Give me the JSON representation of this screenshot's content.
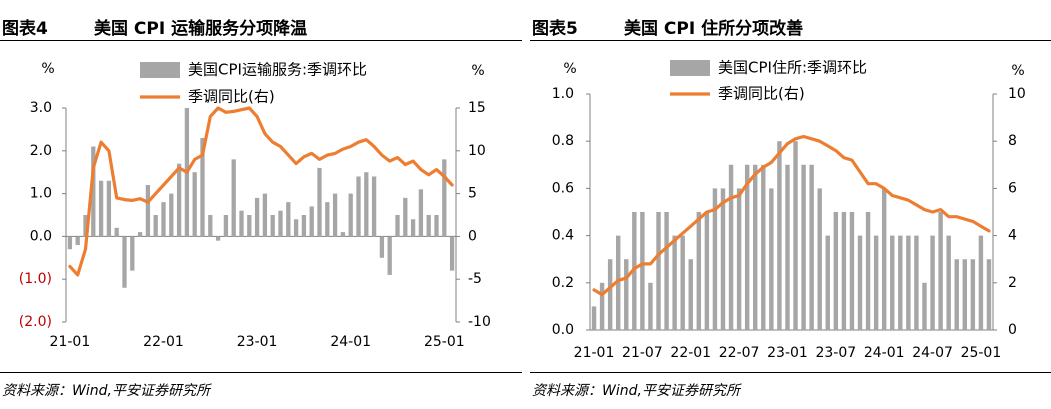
{
  "colors": {
    "bar": "#A6A6A6",
    "line": "#ED7D31",
    "negative_tick": "#C00000",
    "axis": "#808080"
  },
  "panels": [
    {
      "title_num": "图表4",
      "title_text": "美国 CPI 运输服务分项降温",
      "source": "资料来源：Wind,平安证券研究所"
    },
    {
      "title_num": "图表5",
      "title_text": "美国 CPI 住所分项改善",
      "source": "资料来源：Wind,平安证券研究所"
    }
  ],
  "chart_data": [
    {
      "type": "bar",
      "title": "美国 CPI 运输服务分项降温",
      "left_unit": "%",
      "right_unit": "%",
      "left_axis": {
        "min": -2.0,
        "max": 3.0,
        "ticks": [
          3.0,
          2.0,
          1.0,
          0.0,
          -1.0,
          -2.0
        ],
        "tick_labels": [
          "3.0",
          "2.0",
          "1.0",
          "0.0",
          "(1.0)",
          "(2.0)"
        ]
      },
      "right_axis": {
        "min": -10,
        "max": 15,
        "ticks": [
          15,
          10,
          5,
          0,
          -5,
          -10
        ],
        "tick_labels": [
          "15",
          "10",
          "5",
          "0",
          "-5",
          "-10"
        ]
      },
      "x_tick_labels": [
        "21-01",
        "22-01",
        "23-01",
        "24-01",
        "25-01"
      ],
      "x_tick_indices": [
        0,
        12,
        24,
        36,
        48
      ],
      "series": [
        {
          "name": "美国CPI运输服务:季调环比",
          "type": "bar",
          "axis": "left",
          "x": [
            "21-01",
            "21-02",
            "21-03",
            "21-04",
            "21-05",
            "21-06",
            "21-07",
            "21-08",
            "21-09",
            "21-10",
            "21-11",
            "21-12",
            "22-01",
            "22-02",
            "22-03",
            "22-04",
            "22-05",
            "22-06",
            "22-07",
            "22-08",
            "22-09",
            "22-10",
            "22-11",
            "22-12",
            "23-01",
            "23-02",
            "23-03",
            "23-04",
            "23-05",
            "23-06",
            "23-07",
            "23-08",
            "23-09",
            "23-10",
            "23-11",
            "23-12",
            "24-01",
            "24-02",
            "24-03",
            "24-04",
            "24-05",
            "24-06",
            "24-07",
            "24-08",
            "24-09",
            "24-10",
            "24-11",
            "24-12",
            "25-01",
            "25-02"
          ],
          "values": [
            -0.3,
            -0.2,
            0.5,
            2.1,
            1.3,
            1.3,
            0.2,
            -1.2,
            -0.8,
            0.1,
            1.2,
            0.5,
            0.8,
            1.0,
            1.7,
            3.0,
            1.5,
            2.3,
            0.5,
            -0.1,
            0.5,
            1.8,
            0.6,
            0.5,
            0.9,
            1.0,
            0.5,
            0.6,
            0.8,
            0.4,
            0.5,
            0.7,
            1.6,
            0.8,
            1.0,
            0.1,
            1.0,
            1.4,
            1.5,
            1.4,
            -0.5,
            -0.9,
            0.5,
            0.9,
            0.4,
            1.1,
            0.5,
            0.5,
            1.8,
            -0.8
          ]
        },
        {
          "name": "季调同比(右)",
          "type": "line",
          "axis": "right",
          "values": [
            -3.5,
            -4.5,
            -1.5,
            8.0,
            11.0,
            10.0,
            4.5,
            4.3,
            4.2,
            4.4,
            4.0,
            5.0,
            6.0,
            7.0,
            8.0,
            7.5,
            9.0,
            9.5,
            14.0,
            15.0,
            14.5,
            14.6,
            14.8,
            15.0,
            14.0,
            12.0,
            11.0,
            10.5,
            9.5,
            8.5,
            9.3,
            9.7,
            9.0,
            9.5,
            9.7,
            10.2,
            10.5,
            11.0,
            11.3,
            10.5,
            9.5,
            8.8,
            9.2,
            8.4,
            8.8,
            7.8,
            7.2,
            7.8,
            7.0,
            6.0
          ]
        }
      ]
    },
    {
      "type": "bar",
      "title": "美国 CPI 住所分项改善",
      "left_unit": "%",
      "right_unit": "%",
      "left_axis": {
        "min": 0.0,
        "max": 1.0,
        "ticks": [
          1.0,
          0.8,
          0.6,
          0.4,
          0.2,
          0.0
        ],
        "tick_labels": [
          "1.0",
          "0.8",
          "0.6",
          "0.4",
          "0.2",
          "0.0"
        ]
      },
      "right_axis": {
        "min": 0,
        "max": 10,
        "ticks": [
          10,
          8,
          6,
          4,
          2,
          0
        ],
        "tick_labels": [
          "10",
          "8",
          "6",
          "4",
          "2",
          "0"
        ]
      },
      "x_tick_labels": [
        "21-01",
        "21-07",
        "22-01",
        "22-07",
        "23-01",
        "23-07",
        "24-01",
        "24-07",
        "25-01"
      ],
      "x_tick_indices": [
        0,
        6,
        12,
        18,
        24,
        30,
        36,
        42,
        48
      ],
      "series": [
        {
          "name": "美国CPI住所:季调环比",
          "type": "bar",
          "axis": "left",
          "x": [
            "21-01",
            "21-02",
            "21-03",
            "21-04",
            "21-05",
            "21-06",
            "21-07",
            "21-08",
            "21-09",
            "21-10",
            "21-11",
            "21-12",
            "22-01",
            "22-02",
            "22-03",
            "22-04",
            "22-05",
            "22-06",
            "22-07",
            "22-08",
            "22-09",
            "22-10",
            "22-11",
            "22-12",
            "23-01",
            "23-02",
            "23-03",
            "23-04",
            "23-05",
            "23-06",
            "23-07",
            "23-08",
            "23-09",
            "23-10",
            "23-11",
            "23-12",
            "24-01",
            "24-02",
            "24-03",
            "24-04",
            "24-05",
            "24-06",
            "24-07",
            "24-08",
            "24-09",
            "24-10",
            "24-11",
            "24-12",
            "25-01",
            "25-02"
          ],
          "values": [
            0.1,
            0.2,
            0.3,
            0.4,
            0.3,
            0.5,
            0.5,
            0.2,
            0.5,
            0.5,
            0.4,
            0.4,
            0.3,
            0.5,
            0.5,
            0.6,
            0.6,
            0.7,
            0.6,
            0.7,
            0.7,
            0.7,
            0.6,
            0.8,
            0.7,
            0.8,
            0.7,
            0.7,
            0.6,
            0.4,
            0.5,
            0.5,
            0.5,
            0.4,
            0.5,
            0.4,
            0.6,
            0.4,
            0.4,
            0.4,
            0.4,
            0.2,
            0.4,
            0.5,
            0.4,
            0.3,
            0.3,
            0.3,
            0.4,
            0.3
          ]
        },
        {
          "name": "季调同比(右)",
          "type": "line",
          "axis": "right",
          "values": [
            1.7,
            1.5,
            1.8,
            2.1,
            2.2,
            2.6,
            2.8,
            2.8,
            3.2,
            3.5,
            3.8,
            4.1,
            4.4,
            4.7,
            5.0,
            5.1,
            5.4,
            5.6,
            5.7,
            6.2,
            6.6,
            6.9,
            7.1,
            7.5,
            7.9,
            8.1,
            8.2,
            8.1,
            8.0,
            7.8,
            7.6,
            7.3,
            7.2,
            6.7,
            6.2,
            6.2,
            6.0,
            5.7,
            5.6,
            5.5,
            5.3,
            5.1,
            5.0,
            5.1,
            4.8,
            4.8,
            4.7,
            4.6,
            4.4,
            4.2
          ]
        }
      ]
    }
  ]
}
